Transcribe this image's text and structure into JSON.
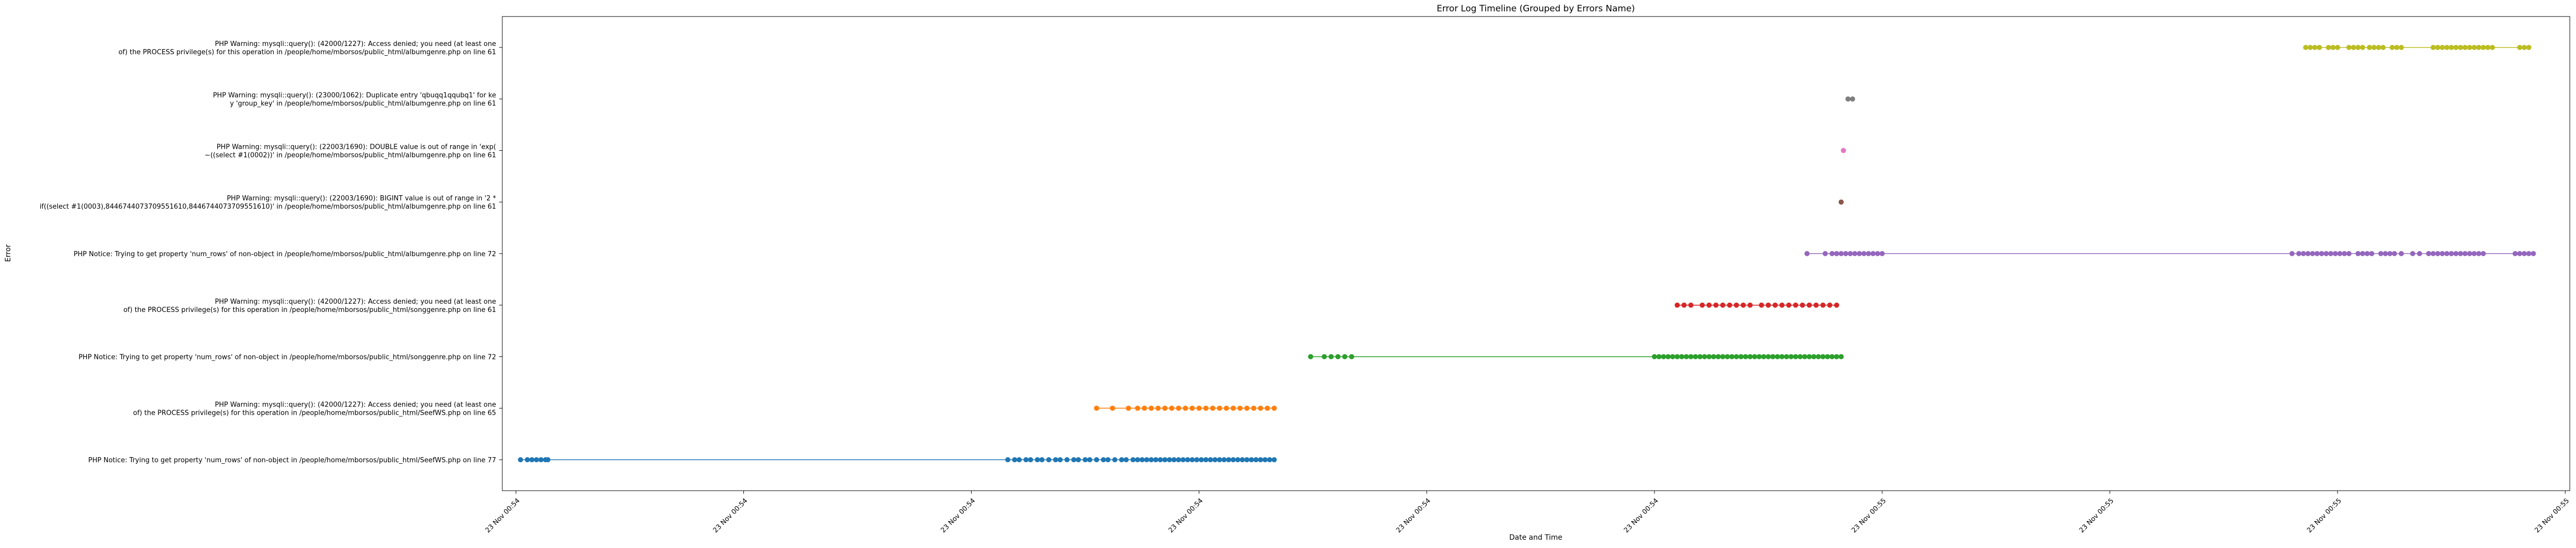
{
  "chart_data": {
    "type": "scatter",
    "title": "Error Log Timeline (Grouped by Errors Name)",
    "xlabel": "Date and Time",
    "ylabel": "Error",
    "x_tick_labels": [
      "23 Nov 00:54",
      "23 Nov 00:54",
      "23 Nov 00:54",
      "23 Nov 00:54",
      "23 Nov 00:54",
      "23 Nov 00:54",
      "23 Nov 00:55",
      "23 Nov 00:55",
      "23 Nov 00:55",
      "23 Nov 00:55"
    ],
    "x_tick_positions": [
      0,
      1,
      2,
      3,
      4,
      5,
      6,
      7,
      8,
      9
    ],
    "xlim": [
      -0.06,
      9.02
    ],
    "ylim": [
      -0.6,
      8.6
    ],
    "grid": false,
    "series": [
      {
        "label_lines": [
          "PHP Notice:  Trying to get property 'num_rows' of non-object in /people/home/mborsos/public_html/SeefWS.php on line 77"
        ],
        "color": "#1f77b4",
        "times": [
          0.02,
          0.05,
          0.07,
          0.09,
          0.11,
          0.13,
          0.14,
          2.16,
          2.19,
          2.21,
          2.24,
          2.26,
          2.29,
          2.31,
          2.34,
          2.37,
          2.39,
          2.42,
          2.45,
          2.47,
          2.5,
          2.52,
          2.55,
          2.58,
          2.6,
          2.63,
          2.66,
          2.68,
          2.71,
          2.73,
          2.75,
          2.77,
          2.79,
          2.81,
          2.83,
          2.85,
          2.87,
          2.89,
          2.91,
          2.93,
          2.95,
          2.97,
          2.99,
          3.01,
          3.03,
          3.05,
          3.07,
          3.09,
          3.11,
          3.13,
          3.15,
          3.17,
          3.19,
          3.21,
          3.23,
          3.25,
          3.27,
          3.29,
          3.31,
          3.33
        ]
      },
      {
        "label_lines": [
          "PHP Warning:  mysqli::query(): (42000/1227): Access denied; you need (at least one",
          "of) the PROCESS privilege(s) for this operation in /people/home/mborsos/public_html/SeefWS.php on line 65"
        ],
        "color": "#ff7f0e",
        "times": [
          2.55,
          2.62,
          2.69,
          2.73,
          2.76,
          2.79,
          2.82,
          2.85,
          2.88,
          2.91,
          2.94,
          2.97,
          3.0,
          3.03,
          3.06,
          3.09,
          3.12,
          3.15,
          3.18,
          3.21,
          3.24,
          3.27,
          3.3,
          3.33
        ]
      },
      {
        "label_lines": [
          "PHP Notice:  Trying to get property 'num_rows' of non-object in /people/home/mborsos/public_html/songgenre.php on line 72"
        ],
        "color": "#2ca02c",
        "times": [
          3.49,
          3.55,
          3.58,
          3.61,
          3.64,
          3.67,
          5.0,
          5.02,
          5.04,
          5.06,
          5.08,
          5.1,
          5.12,
          5.14,
          5.16,
          5.18,
          5.2,
          5.22,
          5.24,
          5.26,
          5.28,
          5.3,
          5.32,
          5.34,
          5.36,
          5.38,
          5.4,
          5.42,
          5.44,
          5.46,
          5.48,
          5.5,
          5.52,
          5.54,
          5.56,
          5.58,
          5.6,
          5.62,
          5.64,
          5.66,
          5.68,
          5.7,
          5.72,
          5.74,
          5.76,
          5.78,
          5.8,
          5.82
        ]
      },
      {
        "label_lines": [
          "PHP Warning:  mysqli::query(): (42000/1227): Access denied; you need (at least one",
          "of) the PROCESS privilege(s) for this operation in /people/home/mborsos/public_html/songgenre.php on line 61"
        ],
        "color": "#d62728",
        "times": [
          5.1,
          5.13,
          5.16,
          5.21,
          5.24,
          5.27,
          5.3,
          5.33,
          5.36,
          5.39,
          5.42,
          5.47,
          5.5,
          5.53,
          5.56,
          5.59,
          5.62,
          5.65,
          5.68,
          5.71,
          5.74,
          5.77,
          5.8
        ]
      },
      {
        "label_lines": [
          "PHP Notice:  Trying to get property 'num_rows' of non-object in /people/home/mborsos/public_html/albumgenre.php on line 72"
        ],
        "color": "#9467bd",
        "times": [
          5.67,
          5.75,
          5.78,
          5.8,
          5.82,
          5.84,
          5.86,
          5.88,
          5.9,
          5.92,
          5.94,
          5.96,
          5.98,
          6.0,
          7.8,
          7.83,
          7.85,
          7.87,
          7.89,
          7.91,
          7.93,
          7.95,
          7.97,
          7.99,
          8.01,
          8.03,
          8.05,
          8.09,
          8.11,
          8.13,
          8.15,
          8.19,
          8.21,
          8.23,
          8.25,
          8.28,
          8.33,
          8.36,
          8.4,
          8.42,
          8.44,
          8.46,
          8.48,
          8.5,
          8.52,
          8.54,
          8.56,
          8.58,
          8.6,
          8.62,
          8.64,
          8.78,
          8.8,
          8.82,
          8.84,
          8.86
        ]
      },
      {
        "label_lines": [
          "PHP Warning:  mysqli::query(): (22003/1690): BIGINT value is out of range in '2 *",
          "if((select #1(0003),8446744073709551610,8446744073709551610)' in /people/home/mborsos/public_html/albumgenre.php on line 61"
        ],
        "color": "#8c564b",
        "times": [
          5.82
        ]
      },
      {
        "label_lines": [
          "PHP Warning:  mysqli::query(): (22003/1690): DOUBLE value is out of range in 'exp(",
          "~((select #1(0002))' in /people/home/mborsos/public_html/albumgenre.php on line 61"
        ],
        "color": "#e377c2",
        "times": [
          5.83
        ]
      },
      {
        "label_lines": [
          "PHP Warning:  mysqli::query(): (23000/1062): Duplicate entry 'qbuqq1qqubq1' for ke",
          "y 'group_key' in /people/home/mborsos/public_html/albumgenre.php on line 61"
        ],
        "color": "#7f7f7f",
        "times": [
          5.85,
          5.87
        ]
      },
      {
        "label_lines": [
          "PHP Warning:  mysqli::query(): (42000/1227): Access denied; you need (at least one",
          "of) the PROCESS privilege(s) for this operation in /people/home/mborsos/public_html/albumgenre.php on line 61"
        ],
        "color": "#bcbd22",
        "times": [
          7.86,
          7.88,
          7.9,
          7.92,
          7.96,
          7.98,
          8.0,
          8.05,
          8.07,
          8.09,
          8.11,
          8.14,
          8.16,
          8.18,
          8.2,
          8.24,
          8.26,
          8.28,
          8.42,
          8.44,
          8.46,
          8.48,
          8.5,
          8.52,
          8.54,
          8.56,
          8.58,
          8.6,
          8.62,
          8.64,
          8.66,
          8.68,
          8.8,
          8.82,
          8.84
        ]
      }
    ]
  }
}
